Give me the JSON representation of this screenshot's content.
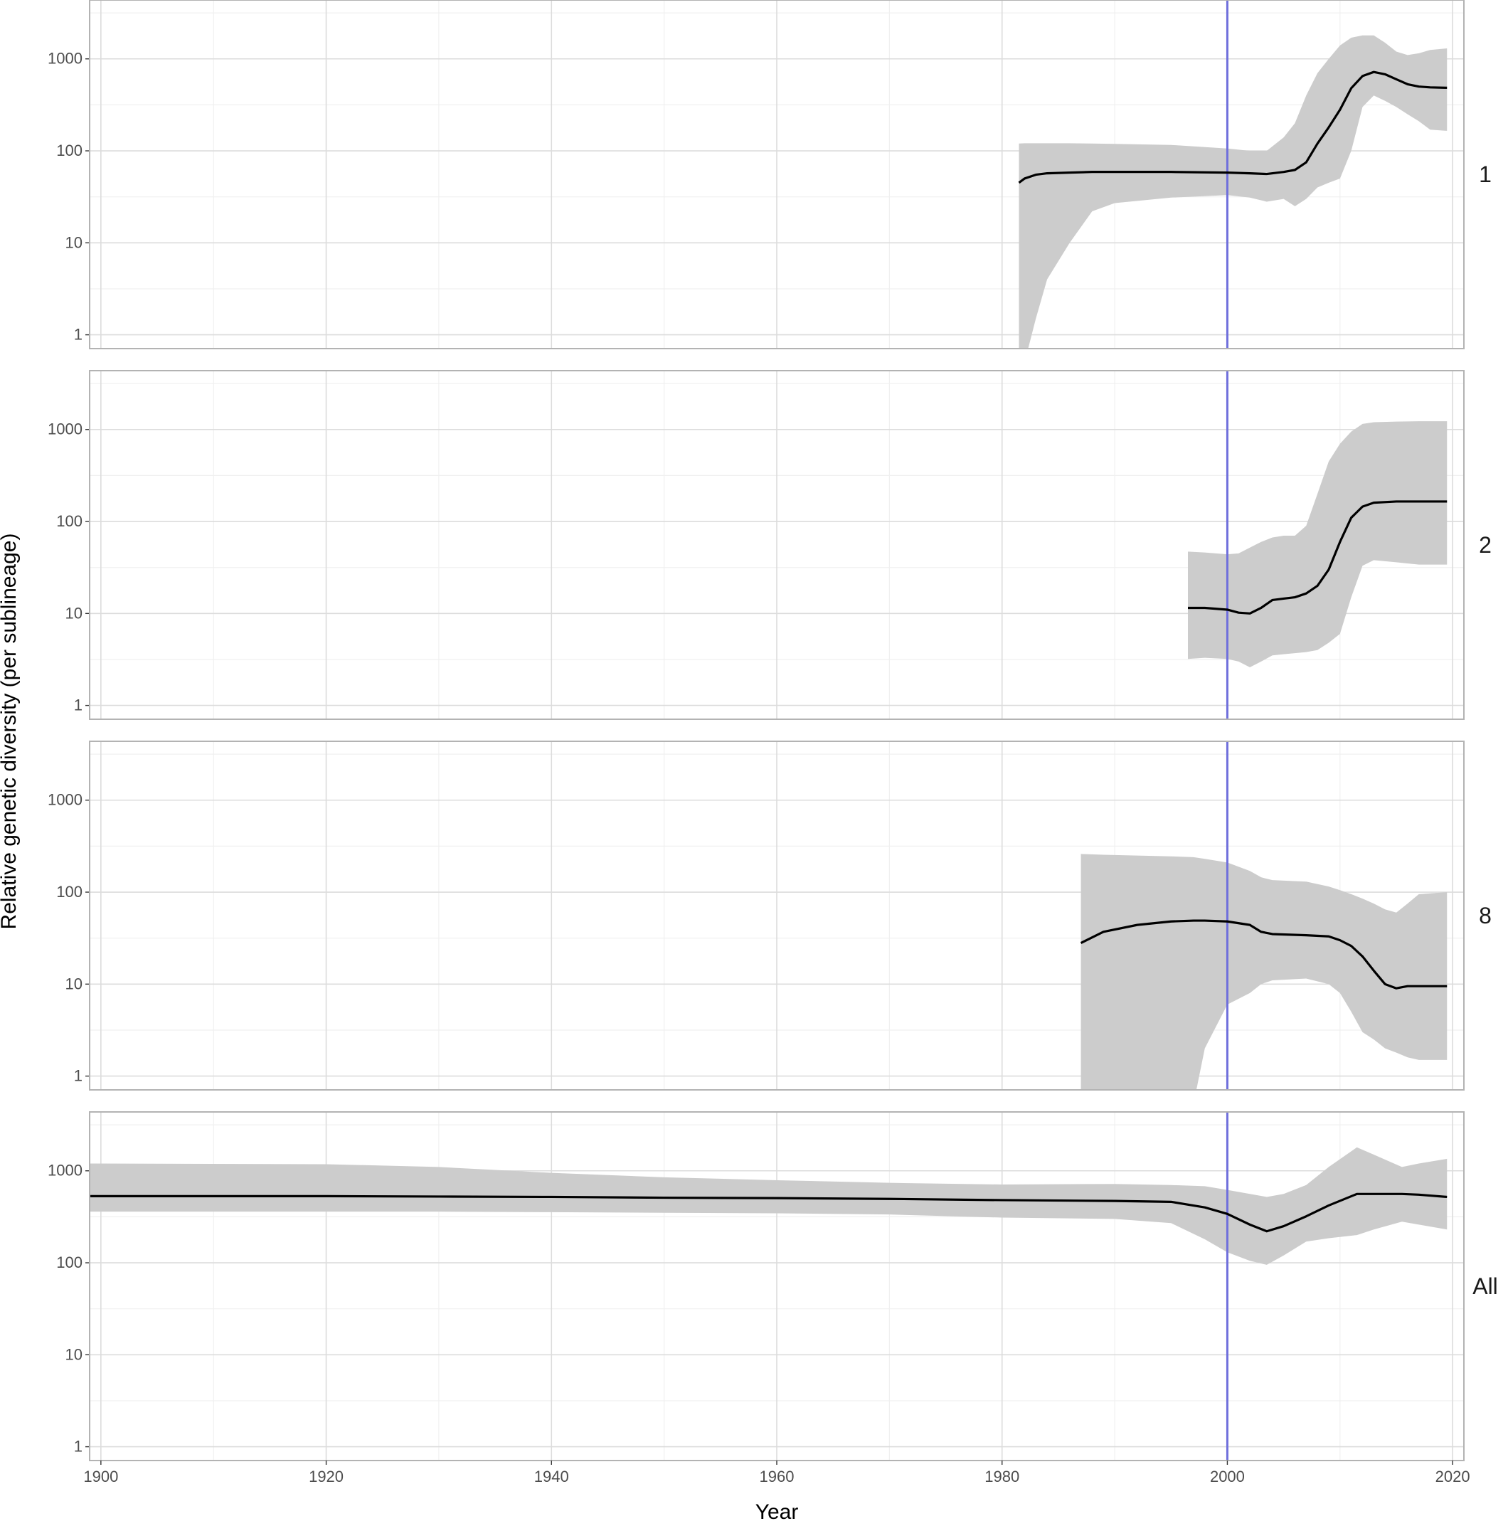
{
  "chart_data": {
    "type": "area",
    "xlabel": "Year",
    "ylabel": "Relative genetic diversity (per sublineage)",
    "x_ticks": [
      "1900",
      "1920",
      "1940",
      "1960",
      "1980",
      "2000",
      "2020"
    ],
    "y_ticks": [
      "1",
      "10",
      "100",
      "1000"
    ],
    "xlim": [
      1899,
      2021
    ],
    "ylim_log10": [
      -0.15,
      3.64
    ],
    "y_scale": "log",
    "grid": true,
    "vertical_reference_line": {
      "x": 2000,
      "color": "#6f6fdc"
    },
    "line_color": "#000000",
    "ribbon_color": "#cccccc",
    "panels": [
      {
        "label": "1",
        "series": [
          {
            "x": 1981.5,
            "y": 45,
            "lo": 0.3,
            "hi": 120
          },
          {
            "x": 1982,
            "y": 50,
            "lo": 0.5,
            "hi": 121
          },
          {
            "x": 1983,
            "y": 55,
            "lo": 1.5,
            "hi": 121
          },
          {
            "x": 1984,
            "y": 57,
            "lo": 4,
            "hi": 121
          },
          {
            "x": 1986,
            "y": 58,
            "lo": 10,
            "hi": 121
          },
          {
            "x": 1988,
            "y": 59,
            "lo": 22,
            "hi": 120
          },
          {
            "x": 1990,
            "y": 59,
            "lo": 27,
            "hi": 119
          },
          {
            "x": 1995,
            "y": 59,
            "lo": 31,
            "hi": 116
          },
          {
            "x": 2000,
            "y": 58,
            "lo": 33,
            "hi": 106
          },
          {
            "x": 2002,
            "y": 57,
            "lo": 31,
            "hi": 100
          },
          {
            "x": 2003.5,
            "y": 56,
            "lo": 28,
            "hi": 100
          },
          {
            "x": 2005,
            "y": 59,
            "lo": 30,
            "hi": 140
          },
          {
            "x": 2006,
            "y": 62,
            "lo": 25,
            "hi": 200
          },
          {
            "x": 2007,
            "y": 75,
            "lo": 30,
            "hi": 400
          },
          {
            "x": 2008,
            "y": 120,
            "lo": 40,
            "hi": 700
          },
          {
            "x": 2009,
            "y": 180,
            "lo": 45,
            "hi": 1000
          },
          {
            "x": 2010,
            "y": 280,
            "lo": 50,
            "hi": 1400
          },
          {
            "x": 2011,
            "y": 480,
            "lo": 100,
            "hi": 1700
          },
          {
            "x": 2012,
            "y": 650,
            "lo": 300,
            "hi": 1800
          },
          {
            "x": 2013,
            "y": 720,
            "lo": 400,
            "hi": 1800
          },
          {
            "x": 2014,
            "y": 680,
            "lo": 350,
            "hi": 1500
          },
          {
            "x": 2015,
            "y": 600,
            "lo": 300,
            "hi": 1200
          },
          {
            "x": 2016,
            "y": 530,
            "lo": 250,
            "hi": 1100
          },
          {
            "x": 2017,
            "y": 500,
            "lo": 210,
            "hi": 1150
          },
          {
            "x": 2018,
            "y": 490,
            "lo": 170,
            "hi": 1250
          },
          {
            "x": 2019.5,
            "y": 485,
            "lo": 165,
            "hi": 1300
          }
        ]
      },
      {
        "label": "2",
        "series": [
          {
            "x": 1996.5,
            "y": 11.5,
            "lo": 3.2,
            "hi": 47
          },
          {
            "x": 1998,
            "y": 11.5,
            "lo": 3.3,
            "hi": 46
          },
          {
            "x": 2000,
            "y": 11,
            "lo": 3.2,
            "hi": 44
          },
          {
            "x": 2001,
            "y": 10.2,
            "lo": 3,
            "hi": 45
          },
          {
            "x": 2002,
            "y": 10,
            "lo": 2.6,
            "hi": 52
          },
          {
            "x": 2003,
            "y": 11.5,
            "lo": 3,
            "hi": 60
          },
          {
            "x": 2004,
            "y": 14,
            "lo": 3.5,
            "hi": 67
          },
          {
            "x": 2005,
            "y": 14.5,
            "lo": 3.6,
            "hi": 70
          },
          {
            "x": 2006,
            "y": 15,
            "lo": 3.7,
            "hi": 70
          },
          {
            "x": 2007,
            "y": 16.5,
            "lo": 3.8,
            "hi": 90
          },
          {
            "x": 2008,
            "y": 20,
            "lo": 4,
            "hi": 200
          },
          {
            "x": 2009,
            "y": 30,
            "lo": 4.8,
            "hi": 450
          },
          {
            "x": 2010,
            "y": 60,
            "lo": 6,
            "hi": 700
          },
          {
            "x": 2011,
            "y": 110,
            "lo": 15,
            "hi": 950
          },
          {
            "x": 2012,
            "y": 145,
            "lo": 33,
            "hi": 1150
          },
          {
            "x": 2013,
            "y": 160,
            "lo": 38,
            "hi": 1200
          },
          {
            "x": 2015,
            "y": 165,
            "lo": 36,
            "hi": 1220
          },
          {
            "x": 2017,
            "y": 165,
            "lo": 34,
            "hi": 1230
          },
          {
            "x": 2019.5,
            "y": 165,
            "lo": 34,
            "hi": 1230
          }
        ]
      },
      {
        "label": "8",
        "series": [
          {
            "x": 1987,
            "y": 28,
            "lo": 0.3,
            "hi": 260
          },
          {
            "x": 1989,
            "y": 37,
            "lo": 0.3,
            "hi": 255
          },
          {
            "x": 1992,
            "y": 44,
            "lo": 0.3,
            "hi": 250
          },
          {
            "x": 1995,
            "y": 48,
            "lo": 0.3,
            "hi": 245
          },
          {
            "x": 1997,
            "y": 49,
            "lo": 0.5,
            "hi": 240
          },
          {
            "x": 1998,
            "y": 49,
            "lo": 2,
            "hi": 230
          },
          {
            "x": 2000,
            "y": 48,
            "lo": 6,
            "hi": 210
          },
          {
            "x": 2002,
            "y": 44,
            "lo": 8,
            "hi": 170
          },
          {
            "x": 2003,
            "y": 37,
            "lo": 10,
            "hi": 145
          },
          {
            "x": 2004,
            "y": 35,
            "lo": 11,
            "hi": 135
          },
          {
            "x": 2007,
            "y": 34,
            "lo": 11.5,
            "hi": 130
          },
          {
            "x": 2009,
            "y": 33,
            "lo": 10,
            "hi": 115
          },
          {
            "x": 2010,
            "y": 30,
            "lo": 8,
            "hi": 105
          },
          {
            "x": 2011,
            "y": 26,
            "lo": 5,
            "hi": 95
          },
          {
            "x": 2012,
            "y": 20,
            "lo": 3,
            "hi": 85
          },
          {
            "x": 2013,
            "y": 14,
            "lo": 2.5,
            "hi": 75
          },
          {
            "x": 2014,
            "y": 10,
            "lo": 2,
            "hi": 65
          },
          {
            "x": 2015,
            "y": 9,
            "lo": 1.8,
            "hi": 60
          },
          {
            "x": 2016,
            "y": 9.5,
            "lo": 1.6,
            "hi": 75
          },
          {
            "x": 2017,
            "y": 9.5,
            "lo": 1.5,
            "hi": 95
          },
          {
            "x": 2019.5,
            "y": 9.5,
            "lo": 1.5,
            "hi": 100
          }
        ]
      },
      {
        "label": "All",
        "series": [
          {
            "x": 1899,
            "y": 530,
            "lo": 360,
            "hi": 1200
          },
          {
            "x": 1920,
            "y": 530,
            "lo": 360,
            "hi": 1180
          },
          {
            "x": 1930,
            "y": 525,
            "lo": 360,
            "hi": 1100
          },
          {
            "x": 1940,
            "y": 520,
            "lo": 355,
            "hi": 950
          },
          {
            "x": 1950,
            "y": 510,
            "lo": 350,
            "hi": 850
          },
          {
            "x": 1960,
            "y": 505,
            "lo": 345,
            "hi": 790
          },
          {
            "x": 1970,
            "y": 495,
            "lo": 335,
            "hi": 740
          },
          {
            "x": 1980,
            "y": 480,
            "lo": 310,
            "hi": 710
          },
          {
            "x": 1990,
            "y": 470,
            "lo": 300,
            "hi": 720
          },
          {
            "x": 1995,
            "y": 460,
            "lo": 270,
            "hi": 700
          },
          {
            "x": 1998,
            "y": 400,
            "lo": 180,
            "hi": 680
          },
          {
            "x": 2000,
            "y": 340,
            "lo": 130,
            "hi": 620
          },
          {
            "x": 2002,
            "y": 260,
            "lo": 105,
            "hi": 560
          },
          {
            "x": 2003.5,
            "y": 220,
            "lo": 95,
            "hi": 520
          },
          {
            "x": 2005,
            "y": 250,
            "lo": 120,
            "hi": 560
          },
          {
            "x": 2007,
            "y": 320,
            "lo": 170,
            "hi": 700
          },
          {
            "x": 2009,
            "y": 420,
            "lo": 185,
            "hi": 1100
          },
          {
            "x": 2011.5,
            "y": 560,
            "lo": 200,
            "hi": 1800
          },
          {
            "x": 2013,
            "y": 560,
            "lo": 230,
            "hi": 1500
          },
          {
            "x": 2015.5,
            "y": 560,
            "lo": 280,
            "hi": 1100
          },
          {
            "x": 2017,
            "y": 550,
            "lo": 260,
            "hi": 1200
          },
          {
            "x": 2019.5,
            "y": 520,
            "lo": 230,
            "hi": 1350
          }
        ]
      }
    ]
  }
}
